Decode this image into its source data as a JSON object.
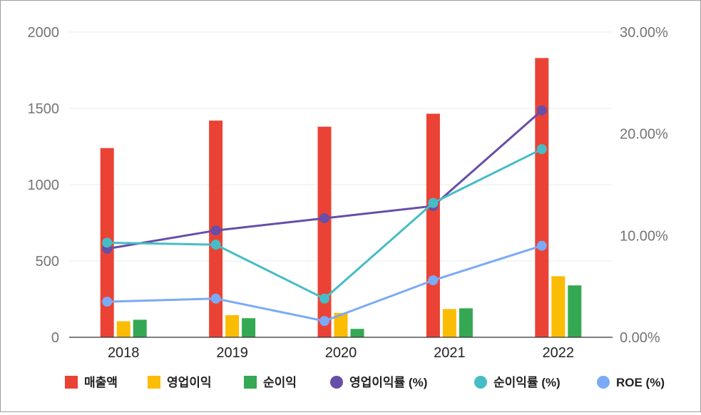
{
  "chart_data": {
    "type": "bar",
    "categories": [
      "2018",
      "2019",
      "2020",
      "2021",
      "2022"
    ],
    "y_left": {
      "ylim": [
        0,
        2000
      ],
      "ticks": [
        0,
        500,
        1000,
        1500,
        2000
      ],
      "tick_labels": [
        "0",
        "500",
        "1000",
        "1500",
        "2000"
      ]
    },
    "y_right": {
      "ylim": [
        0,
        30
      ],
      "ticks": [
        0,
        10,
        20,
        30
      ],
      "tick_labels": [
        "0.00%",
        "10.00%",
        "20.00%",
        "30.00%"
      ]
    },
    "grid": true,
    "legend_position": "bottom",
    "bar_series": [
      {
        "name": "매출액",
        "color": "#ea4335",
        "values": [
          1240,
          1420,
          1380,
          1465,
          1830
        ]
      },
      {
        "name": "영업이익",
        "color": "#fbbc04",
        "values": [
          105,
          145,
          160,
          185,
          400
        ]
      },
      {
        "name": "순이익",
        "color": "#34a853",
        "values": [
          115,
          125,
          55,
          190,
          340
        ]
      }
    ],
    "line_series": [
      {
        "name": "영업이익률 (%)",
        "color": "#674ea7",
        "values": [
          8.7,
          10.5,
          11.7,
          12.9,
          22.3
        ]
      },
      {
        "name": "순이익률 (%)",
        "color": "#46bdc6",
        "values": [
          9.3,
          9.1,
          3.8,
          13.2,
          18.5
        ]
      },
      {
        "name": "ROE (%)",
        "color": "#7baaf7",
        "values": [
          3.5,
          3.8,
          1.6,
          5.6,
          9.0
        ]
      }
    ]
  }
}
